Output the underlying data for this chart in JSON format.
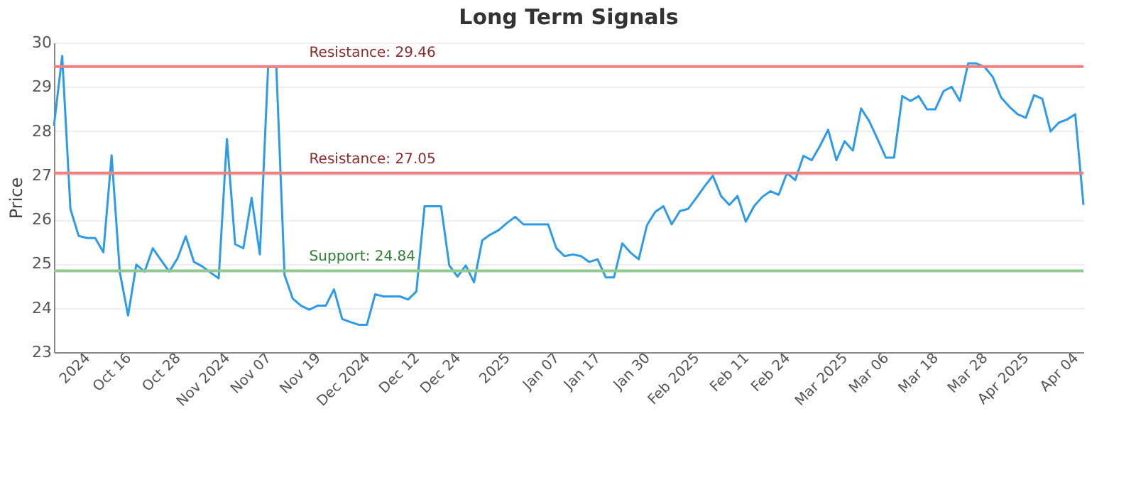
{
  "chart_data": {
    "type": "line",
    "title": "Long Term Signals",
    "ylabel": "Price",
    "categories": [
      null,
      null,
      null,
      null,
      "2024",
      null,
      null,
      null,
      null,
      "Oct 16",
      null,
      null,
      null,
      null,
      null,
      "Oct 28",
      null,
      null,
      null,
      null,
      null,
      "Nov 2024",
      null,
      null,
      null,
      null,
      "Nov 07",
      null,
      null,
      null,
      null,
      null,
      "Nov 19",
      null,
      null,
      null,
      null,
      null,
      "Dec 2024",
      null,
      null,
      null,
      null,
      null,
      "Dec 12",
      null,
      null,
      null,
      null,
      "Dec 24",
      null,
      null,
      null,
      null,
      null,
      "2025",
      null,
      null,
      null,
      null,
      null,
      "Jan 07",
      null,
      null,
      null,
      null,
      "Jan 17",
      null,
      null,
      null,
      null,
      null,
      "Jan 30",
      null,
      null,
      null,
      null,
      null,
      "Feb 2025",
      null,
      null,
      null,
      null,
      null,
      "Feb 11",
      null,
      null,
      null,
      null,
      "Feb 24",
      null,
      null,
      null,
      null,
      null,
      null,
      "Mar 2025",
      null,
      null,
      null,
      null,
      "Mar 06",
      null,
      null,
      null,
      null,
      null,
      "Mar 18",
      null,
      null,
      null,
      null,
      null,
      "Mar 28",
      null,
      null,
      null,
      null,
      "Apr 2025",
      null,
      null,
      null,
      null,
      null,
      "Apr 04",
      null
    ],
    "series": [
      {
        "color": "#2e9be8",
        "values": [
          28.12,
          29.7,
          26.24,
          25.63,
          25.58,
          25.58,
          25.26,
          27.45,
          24.8,
          23.83,
          24.98,
          24.82,
          25.35,
          25.08,
          24.82,
          25.12,
          25.62,
          25.04,
          24.94,
          24.8,
          24.67,
          27.82,
          25.44,
          25.35,
          26.49,
          25.21,
          29.45,
          29.45,
          24.74,
          24.21,
          24.05,
          23.96,
          24.05,
          24.05,
          24.42,
          23.75,
          23.68,
          23.62,
          23.62,
          24.31,
          24.26,
          24.26,
          24.26,
          24.19,
          24.37,
          26.3,
          26.3,
          26.3,
          24.96,
          24.71,
          24.96,
          24.58,
          25.53,
          25.66,
          25.76,
          25.92,
          26.06,
          25.89,
          25.89,
          25.89,
          25.89,
          25.35,
          25.17,
          25.21,
          25.17,
          25.04,
          25.1,
          24.69,
          24.69,
          25.46,
          25.25,
          25.1,
          25.87,
          26.17,
          26.3,
          25.89,
          26.19,
          26.24,
          26.49,
          26.75,
          26.99,
          26.53,
          26.33,
          26.53,
          25.95,
          26.3,
          26.51,
          26.64,
          26.56,
          27.05,
          26.89,
          27.44,
          27.34,
          27.66,
          28.03,
          27.34,
          27.77,
          27.56,
          28.51,
          28.22,
          27.82,
          27.4,
          27.4,
          28.79,
          28.68,
          28.79,
          28.49,
          28.49,
          28.9,
          29.0,
          28.68,
          29.53,
          29.53,
          29.45,
          29.22,
          28.76,
          28.55,
          28.38,
          28.3,
          28.81,
          28.73,
          27.99,
          28.19,
          28.26,
          28.38,
          26.33
        ]
      }
    ],
    "ylim": [
      23,
      30
    ],
    "yticks": [
      23,
      24,
      25,
      26,
      27,
      28,
      29,
      30
    ],
    "grid": "y",
    "marker": "none",
    "line_style": "solid",
    "ref_lines": [
      {
        "axis": "y",
        "value": 29.46,
        "label": "Resistance: 29.46",
        "color": "#f08080"
      },
      {
        "axis": "y",
        "value": 27.05,
        "label": "Resistance: 27.05",
        "color": "#f08080"
      },
      {
        "axis": "y",
        "value": 24.84,
        "label": "Support: 24.84",
        "color": "#8fc98f"
      }
    ]
  }
}
